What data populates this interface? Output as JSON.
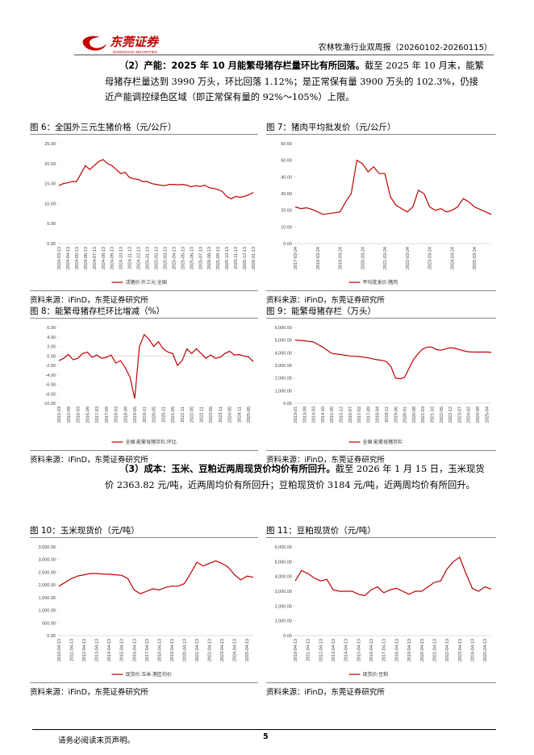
{
  "header": {
    "logo_text": "东莞证券",
    "logo_sub": "DONGGUAN SECURITIES",
    "report": "农林牧渔行业双周报（20260102-20260115）"
  },
  "paragraphs": [
    {
      "lead": "（2）产能：2025 年 10 月能繁母猪存栏量环比有所回落。",
      "text": "截至 2025 年 10 月末，能繁母猪存栏量达到 3990 万头，环比回落 1.12%；是正常保有量 3900 万头的 102.3%，仍接近产能调控绿色区域（即正常保有量的 92%～105%）上限。"
    },
    {
      "lead": "（3）成本：玉米、豆粕近两周现货价均价有所回升。",
      "text": "截至 2026 年 1 月 15 日，玉米现货价 2363.82 元/吨，近两周均价有所回升；豆粕现货价 3184 元/吨，近两周均价有所回升。"
    }
  ],
  "chart_data": [
    {
      "type": "line",
      "title": "图 6：全国外三元生猪价格（元/公斤）",
      "source": "资料来源：iFinD，东莞证券研究所",
      "ylim": [
        0,
        25
      ],
      "yticks": [
        {
          "value": 0,
          "label": "0.00"
        },
        {
          "value": 5,
          "label": "5.00"
        },
        {
          "value": 10,
          "label": "10.00"
        },
        {
          "value": 15,
          "label": "15.00"
        },
        {
          "value": 20,
          "label": "20.00"
        },
        {
          "value": 25,
          "label": "25.00"
        }
      ],
      "categories": [
        "2024-03-13",
        null,
        "2024-04-13",
        null,
        "2024-05-13",
        null,
        "2024-06-13",
        null,
        "2024-07-13",
        null,
        "2024-08-13",
        null,
        "2024-09-13",
        null,
        "2024-10-13",
        null,
        "2024-11-13",
        null,
        "2024-12-13",
        null,
        "2025-01-13",
        null,
        "2025-02-13",
        null,
        "2025-03-13",
        null,
        "2025-04-13",
        null,
        "2025-05-13",
        null,
        "2025-06-13",
        null,
        "2025-07-13",
        null,
        "2025-08-13",
        null,
        "2025-09-13",
        null,
        "2025-10-13",
        null,
        "2025-11-13",
        null,
        "2025-12-13",
        null,
        "2026-01-13"
      ],
      "series": [
        {
          "name": "活猪价:外三元:全国",
          "color": "#c00000",
          "values": [
            14.5,
            15.0,
            15.2,
            15.5,
            15.5,
            17.5,
            19.5,
            18.5,
            19.5,
            20.5,
            21,
            20,
            19.5,
            18.5,
            17.5,
            17.8,
            16.5,
            16.2,
            16.0,
            15.5,
            15.5,
            15.0,
            14.8,
            14.6,
            14.5,
            14.8,
            14.8,
            14.7,
            14.8,
            14.6,
            14.2,
            14.5,
            14.3,
            14.6,
            14.0,
            13.8,
            13.5,
            13.0,
            11.8,
            11.2,
            11.8,
            11.6,
            11.8,
            12.2,
            12.8
          ]
        }
      ]
    },
    {
      "type": "line",
      "title": "图 7：猪肉平均批发价（元/公斤）",
      "source": "资料来源：iFinD，东莞证券研究所",
      "ylim": [
        0,
        60
      ],
      "yticks": [
        {
          "value": 0,
          "label": "0.00"
        },
        {
          "value": 10,
          "label": "10.00"
        },
        {
          "value": 20,
          "label": "20.00"
        },
        {
          "value": 30,
          "label": "30.00"
        },
        {
          "value": 40,
          "label": "40.00"
        },
        {
          "value": 50,
          "label": "50.00"
        },
        {
          "value": 60,
          "label": "60.00"
        }
      ],
      "categories": [
        "2017-03-24",
        null,
        null,
        null,
        "2018-03-24",
        null,
        null,
        null,
        "2019-03-24",
        null,
        null,
        null,
        "2020-03-24",
        null,
        null,
        null,
        "2021-03-24",
        null,
        null,
        null,
        "2022-03-24",
        null,
        null,
        null,
        "2023-03-24",
        null,
        null,
        null,
        "2024-03-24",
        null,
        null,
        null,
        "2025-03-24",
        null,
        null,
        null
      ],
      "series": [
        {
          "name": "平均批发价:猪肉",
          "color": "#c00000",
          "values": [
            22,
            21,
            21.5,
            20.5,
            19,
            17.5,
            18,
            18.5,
            19,
            25,
            30,
            50,
            48,
            43,
            46,
            42,
            42,
            28,
            23,
            21,
            19,
            22,
            32,
            30,
            22,
            20,
            21,
            19,
            20,
            22,
            27,
            25,
            22,
            20.5,
            19,
            17.5
          ]
        }
      ]
    },
    {
      "type": "line",
      "title": "图 8：能繁母猪存栏环比增减（%）",
      "source": "资料来源：iFinD，东莞证券研究所",
      "ylim": [
        -10,
        6
      ],
      "yticks": [
        {
          "value": -10,
          "label": "-10.00"
        },
        {
          "value": -8,
          "label": "-8.00"
        },
        {
          "value": -6,
          "label": "-6.00"
        },
        {
          "value": -4,
          "label": "-4.00"
        },
        {
          "value": -2,
          "label": "-2.00"
        },
        {
          "value": 0,
          "label": "0.00"
        },
        {
          "value": 2,
          "label": "2.00"
        },
        {
          "value": 4,
          "label": "4.00"
        },
        {
          "value": 6,
          "label": "6.00"
        }
      ],
      "categories": [
        "2015-03",
        null,
        "2015-09",
        null,
        "2016-03",
        null,
        "2016-09",
        null,
        "2017-03",
        null,
        "2017-09",
        null,
        "2018-03",
        null,
        "2018-09",
        null,
        "2019-05",
        null,
        "2019-11",
        null,
        "2020-05",
        null,
        "2020-11",
        null,
        "2021-05",
        null,
        "2021-11",
        null,
        "2022-05",
        null,
        "2022-11",
        null,
        "2023-05",
        null,
        "2023-11",
        null,
        "2024-05",
        null,
        "2024-11",
        null,
        "2025-05",
        null
      ],
      "series": [
        {
          "name": "全国:能繁母猪存栏:环比",
          "color": "#c00000",
          "values": [
            -1.0,
            -0.5,
            0.3,
            -0.8,
            -0.5,
            0.5,
            0.8,
            -0.3,
            0.2,
            -0.5,
            -0.3,
            0.2,
            -1.5,
            -1.0,
            -2.5,
            -4.5,
            -9.0,
            2.0,
            4.5,
            3.5,
            2.0,
            3.0,
            1.5,
            0.8,
            0.5,
            -2.0,
            -1.0,
            1.5,
            0.5,
            1.5,
            0.5,
            -0.5,
            0.2,
            -0.5,
            -0.3,
            0.5,
            1.0,
            0.2,
            0.3,
            0.0,
            -0.2,
            -1.2
          ]
        }
      ]
    },
    {
      "type": "line",
      "title": "图 9：能繁母猪存栏（万头）",
      "source": "资料来源：iFinD，东莞证券研究所",
      "ylim": [
        0,
        6000
      ],
      "yticks": [
        {
          "value": 0,
          "label": "0.00"
        },
        {
          "value": 1000,
          "label": "1,000.00"
        },
        {
          "value": 2000,
          "label": "2,000.00"
        },
        {
          "value": 3000,
          "label": "3,000.00"
        },
        {
          "value": 4000,
          "label": "4,000.00"
        },
        {
          "value": 5000,
          "label": "5,000.00"
        },
        {
          "value": 6000,
          "label": "6,000.00"
        }
      ],
      "categories": [
        "2013-01",
        null,
        "2013-08",
        null,
        "2014-03",
        null,
        "2014-10",
        null,
        "2015-05",
        null,
        "2015-12",
        null,
        "2016-07",
        null,
        "2017-02",
        null,
        "2017-09",
        null,
        "2018-04",
        null,
        "2018-11",
        null,
        "2019-06",
        null,
        "2020-01",
        null,
        "2020-08",
        null,
        "2021-03",
        null,
        "2021-10",
        null,
        "2022-05",
        null,
        "2022-12",
        null,
        "2023-07",
        null,
        "2024-02",
        null,
        "2024-09",
        null,
        "2025-04",
        null
      ],
      "series": [
        {
          "name": "全国:能繁母猪存栏",
          "color": "#c00000",
          "values": [
            5000,
            4980,
            4950,
            4900,
            4850,
            4650,
            4450,
            4200,
            3950,
            3900,
            3850,
            3800,
            3750,
            3720,
            3700,
            3650,
            3600,
            3520,
            3450,
            3400,
            3300,
            2900,
            2000,
            1950,
            2050,
            2800,
            3500,
            3950,
            4300,
            4450,
            4450,
            4250,
            4200,
            4300,
            4400,
            4350,
            4250,
            4150,
            4080,
            4060,
            4050,
            4050,
            4060,
            4030
          ]
        }
      ]
    },
    {
      "type": "line",
      "title": "图 10：玉米现货价（元/吨）",
      "source": "资料来源：iFinD，东莞证券研究所",
      "ylim": [
        0,
        3500
      ],
      "yticks": [
        {
          "value": 0,
          "label": "0.00"
        },
        {
          "value": 500,
          "label": "500.00"
        },
        {
          "value": 1000,
          "label": "1,000.00"
        },
        {
          "value": 1500,
          "label": "1,500.00"
        },
        {
          "value": 2000,
          "label": "2,000.00"
        },
        {
          "value": 2500,
          "label": "2,500.00"
        },
        {
          "value": 3000,
          "label": "3,000.00"
        },
        {
          "value": 3500,
          "label": "3,500.00"
        }
      ],
      "categories": [
        "2010-04-13",
        null,
        "2011-04-13",
        null,
        "2012-04-13",
        null,
        "2013-04-13",
        null,
        "2014-04-13",
        null,
        "2015-04-13",
        null,
        "2016-04-13",
        null,
        "2017-04-13",
        null,
        "2018-04-13",
        null,
        "2019-04-13",
        null,
        "2020-04-13",
        null,
        "2021-04-13",
        null,
        "2022-04-13",
        null,
        "2023-04-13",
        null,
        "2024-04-13",
        null,
        "2025-04-13",
        null
      ],
      "series": [
        {
          "name": "现货价:玉米:港区均价",
          "color": "#c00000",
          "values": [
            1950,
            2100,
            2250,
            2350,
            2400,
            2450,
            2450,
            2430,
            2420,
            2400,
            2380,
            2250,
            1800,
            1650,
            1750,
            1850,
            1800,
            1900,
            1950,
            1950,
            2050,
            2450,
            2900,
            2750,
            2850,
            2950,
            2850,
            2700,
            2400,
            2200,
            2350,
            2300
          ]
        }
      ]
    },
    {
      "type": "line",
      "title": "图 11：豆粕现货价（元/吨）",
      "source": "资料来源：iFinD，东莞证券研究所",
      "ylim": [
        0,
        6000
      ],
      "yticks": [
        {
          "value": 0,
          "label": "0.00"
        },
        {
          "value": 1000,
          "label": "1,000.00"
        },
        {
          "value": 2000,
          "label": "2,000.00"
        },
        {
          "value": 3000,
          "label": "3,000.00"
        },
        {
          "value": 4000,
          "label": "4,000.00"
        },
        {
          "value": 5000,
          "label": "5,000.00"
        },
        {
          "value": 6000,
          "label": "6,000.00"
        }
      ],
      "categories": [
        "2010-04-13",
        null,
        "2011-04-13",
        null,
        "2012-04-13",
        null,
        "2013-04-13",
        null,
        "2014-04-13",
        null,
        "2015-04-13",
        null,
        "2016-04-13",
        null,
        "2017-04-13",
        null,
        "2018-04-13",
        null,
        "2019-04-13",
        null,
        "2020-04-13",
        null,
        "2021-04-13",
        null,
        "2022-04-13",
        null,
        "2023-04-13",
        null,
        "2024-04-13",
        null,
        "2025-04-13",
        null
      ],
      "series": [
        {
          "name": "现货价:豆粕",
          "color": "#c00000",
          "values": [
            3700,
            4400,
            4200,
            3900,
            3700,
            3800,
            3100,
            3000,
            3000,
            3000,
            2800,
            2700,
            3100,
            3300,
            2900,
            3100,
            3200,
            3000,
            2800,
            3000,
            3000,
            3300,
            3600,
            3700,
            4500,
            5000,
            5300,
            4200,
            3200,
            3000,
            3300,
            3150
          ]
        }
      ]
    }
  ],
  "footer": {
    "note": "请务必阅读末页声明。",
    "page": "5"
  }
}
